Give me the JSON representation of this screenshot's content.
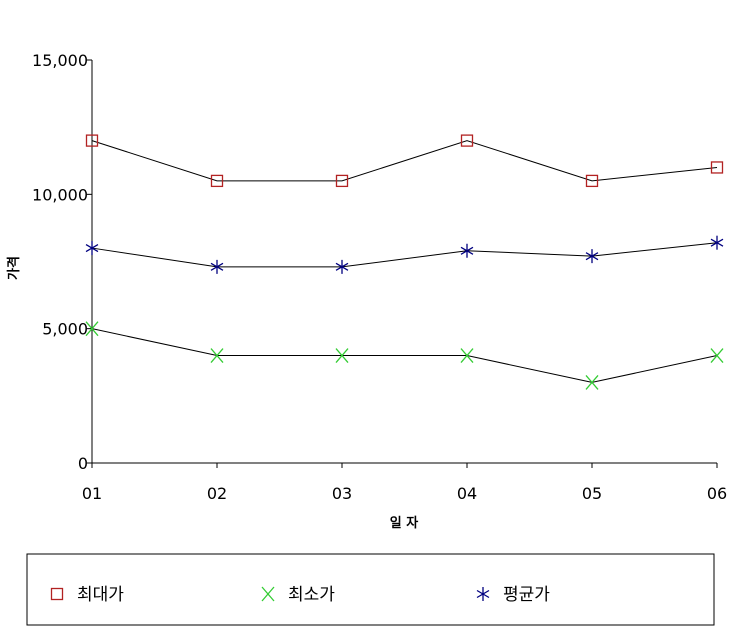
{
  "chart_data": {
    "type": "line",
    "title": "",
    "xlabel": "일 자",
    "ylabel": "가격",
    "categories": [
      "01",
      "02",
      "03",
      "04",
      "05",
      "06"
    ],
    "ylim": [
      0,
      15000
    ],
    "yticks": [
      0,
      5000,
      10000,
      15000
    ],
    "ytick_labels": [
      "0",
      "5,000",
      "10,000",
      "15,000"
    ],
    "grid": false,
    "legend_position": "bottom",
    "series": [
      {
        "name": "최대가",
        "marker": "square",
        "color": "#b22222",
        "values": [
          12000,
          10500,
          10500,
          12000,
          10500,
          11000
        ]
      },
      {
        "name": "최소가",
        "marker": "x",
        "color": "#33cc33",
        "values": [
          5000,
          4000,
          4000,
          4000,
          3000,
          4000
        ]
      },
      {
        "name": "평균가",
        "marker": "asterisk",
        "color": "#000080",
        "values": [
          8000,
          7300,
          7300,
          7900,
          7700,
          8200
        ]
      }
    ],
    "line_color": "#000000"
  }
}
